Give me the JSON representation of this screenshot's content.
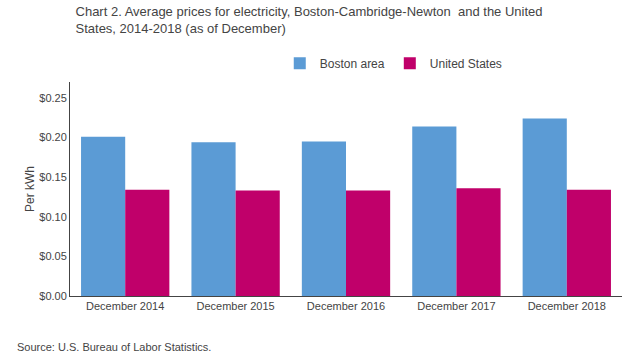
{
  "chart_data": {
    "type": "bar",
    "title": "Chart 2. Average prices for electricity, Boston-Cambridge-Newton  and the United\nStates, 2014-2018 (as of December)",
    "y_label": "Per kWh",
    "categories": [
      "December 2014",
      "December 2015",
      "December 2016",
      "December 2017",
      "December 2018"
    ],
    "series": [
      {
        "name": "Boston area",
        "color": "#5B9BD5",
        "values": [
          0.201,
          0.194,
          0.195,
          0.214,
          0.224
        ]
      },
      {
        "name": "United States",
        "color": "#C0006A",
        "values": [
          0.134,
          0.133,
          0.133,
          0.136,
          0.134
        ]
      }
    ],
    "ylim": [
      0.0,
      0.27
    ],
    "yticks": [
      {
        "value": 0.0,
        "label": "$0.00"
      },
      {
        "value": 0.05,
        "label": "$0.05"
      },
      {
        "value": 0.1,
        "label": "$0.10"
      },
      {
        "value": 0.15,
        "label": "$0.15"
      },
      {
        "value": 0.2,
        "label": "$0.20"
      },
      {
        "value": 0.25,
        "label": "$0.25"
      }
    ],
    "grid": false,
    "legend": "top",
    "annotations": [
      "Source: U.S. Bureau of Labor Statistics."
    ]
  }
}
